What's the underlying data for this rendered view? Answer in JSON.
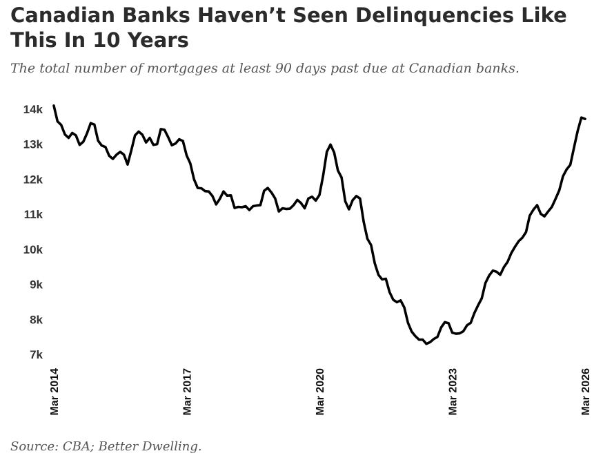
{
  "title": "Canadian Banks Haven’t Seen Delinquencies Like This In 10 Years",
  "subtitle": "The total number of mortgages at least 90 days past due at Canadian banks.",
  "source": "Source: CBA; Better Dwelling.",
  "chart_data": {
    "type": "line",
    "title": "Canadian Banks Haven’t Seen Delinquencies Like This In 10 Years",
    "subtitle": "The total number of mortgages at least 90 days past due at Canadian banks.",
    "xlabel": "",
    "ylabel": "",
    "ylim": [
      7000,
      14000
    ],
    "y_ticks": [
      {
        "value": 7000,
        "label": "7k"
      },
      {
        "value": 8000,
        "label": "8k"
      },
      {
        "value": 9000,
        "label": "9k"
      },
      {
        "value": 10000,
        "label": "10k"
      },
      {
        "value": 11000,
        "label": "11k"
      },
      {
        "value": 12000,
        "label": "12k"
      },
      {
        "value": 13000,
        "label": "13k"
      },
      {
        "value": 14000,
        "label": "14k"
      }
    ],
    "x_range": [
      "2014-03",
      "2026-03"
    ],
    "x_ticks": [
      {
        "date": "2014-03",
        "label": "Mar 2014"
      },
      {
        "date": "2017-03",
        "label": "Mar 2017"
      },
      {
        "date": "2020-03",
        "label": "Mar 2020"
      },
      {
        "date": "2023-03",
        "label": "Mar 2023"
      },
      {
        "date": "2026-03",
        "label": "Mar 2026"
      }
    ],
    "grid": false,
    "legend": "none",
    "line_color": "#000000",
    "series": [
      {
        "name": "",
        "points": [
          [
            "2014-03",
            14100
          ],
          [
            "2014-04",
            13650
          ],
          [
            "2014-05",
            13550
          ],
          [
            "2014-06",
            13280
          ],
          [
            "2014-07",
            13180
          ],
          [
            "2014-08",
            13320
          ],
          [
            "2014-09",
            13250
          ],
          [
            "2014-10",
            12980
          ],
          [
            "2014-11",
            13070
          ],
          [
            "2014-12",
            13310
          ],
          [
            "2015-01",
            13600
          ],
          [
            "2015-02",
            13560
          ],
          [
            "2015-03",
            13100
          ],
          [
            "2015-04",
            12960
          ],
          [
            "2015-05",
            12920
          ],
          [
            "2015-06",
            12670
          ],
          [
            "2015-07",
            12580
          ],
          [
            "2015-08",
            12700
          ],
          [
            "2015-09",
            12780
          ],
          [
            "2015-10",
            12700
          ],
          [
            "2015-11",
            12420
          ],
          [
            "2015-12",
            12820
          ],
          [
            "2016-01",
            13250
          ],
          [
            "2016-02",
            13360
          ],
          [
            "2016-03",
            13270
          ],
          [
            "2016-04",
            13050
          ],
          [
            "2016-05",
            13180
          ],
          [
            "2016-06",
            12980
          ],
          [
            "2016-07",
            13000
          ],
          [
            "2016-08",
            13430
          ],
          [
            "2016-09",
            13410
          ],
          [
            "2016-10",
            13200
          ],
          [
            "2016-11",
            12970
          ],
          [
            "2016-12",
            13020
          ],
          [
            "2017-01",
            13140
          ],
          [
            "2017-02",
            13090
          ],
          [
            "2017-03",
            12680
          ],
          [
            "2017-04",
            12450
          ],
          [
            "2017-05",
            12000
          ],
          [
            "2017-06",
            11750
          ],
          [
            "2017-07",
            11740
          ],
          [
            "2017-08",
            11660
          ],
          [
            "2017-09",
            11650
          ],
          [
            "2017-10",
            11520
          ],
          [
            "2017-11",
            11280
          ],
          [
            "2017-12",
            11440
          ],
          [
            "2018-01",
            11650
          ],
          [
            "2018-02",
            11530
          ],
          [
            "2018-03",
            11540
          ],
          [
            "2018-04",
            11180
          ],
          [
            "2018-05",
            11210
          ],
          [
            "2018-06",
            11200
          ],
          [
            "2018-07",
            11230
          ],
          [
            "2018-08",
            11120
          ],
          [
            "2018-09",
            11230
          ],
          [
            "2018-10",
            11250
          ],
          [
            "2018-11",
            11260
          ],
          [
            "2018-12",
            11670
          ],
          [
            "2019-01",
            11750
          ],
          [
            "2019-02",
            11620
          ],
          [
            "2019-03",
            11450
          ],
          [
            "2019-04",
            11080
          ],
          [
            "2019-05",
            11170
          ],
          [
            "2019-06",
            11150
          ],
          [
            "2019-07",
            11160
          ],
          [
            "2019-08",
            11260
          ],
          [
            "2019-09",
            11410
          ],
          [
            "2019-10",
            11320
          ],
          [
            "2019-11",
            11170
          ],
          [
            "2019-12",
            11450
          ],
          [
            "2020-01",
            11500
          ],
          [
            "2020-02",
            11390
          ],
          [
            "2020-03",
            11550
          ],
          [
            "2020-04",
            12100
          ],
          [
            "2020-05",
            12780
          ],
          [
            "2020-06",
            12990
          ],
          [
            "2020-07",
            12760
          ],
          [
            "2020-08",
            12250
          ],
          [
            "2020-09",
            12050
          ],
          [
            "2020-10",
            11370
          ],
          [
            "2020-11",
            11140
          ],
          [
            "2020-12",
            11400
          ],
          [
            "2021-01",
            11520
          ],
          [
            "2021-02",
            11450
          ],
          [
            "2021-03",
            10780
          ],
          [
            "2021-04",
            10300
          ],
          [
            "2021-05",
            10120
          ],
          [
            "2021-06",
            9600
          ],
          [
            "2021-07",
            9270
          ],
          [
            "2021-08",
            9140
          ],
          [
            "2021-09",
            9160
          ],
          [
            "2021-10",
            8780
          ],
          [
            "2021-11",
            8560
          ],
          [
            "2021-12",
            8490
          ],
          [
            "2022-01",
            8540
          ],
          [
            "2022-02",
            8340
          ],
          [
            "2022-03",
            7900
          ],
          [
            "2022-04",
            7650
          ],
          [
            "2022-05",
            7520
          ],
          [
            "2022-06",
            7420
          ],
          [
            "2022-07",
            7420
          ],
          [
            "2022-08",
            7300
          ],
          [
            "2022-09",
            7350
          ],
          [
            "2022-10",
            7440
          ],
          [
            "2022-11",
            7500
          ],
          [
            "2022-12",
            7770
          ],
          [
            "2023-01",
            7920
          ],
          [
            "2023-02",
            7890
          ],
          [
            "2023-03",
            7620
          ],
          [
            "2023-04",
            7590
          ],
          [
            "2023-05",
            7600
          ],
          [
            "2023-06",
            7660
          ],
          [
            "2023-07",
            7830
          ],
          [
            "2023-08",
            7900
          ],
          [
            "2023-09",
            8180
          ],
          [
            "2023-10",
            8400
          ],
          [
            "2023-11",
            8600
          ],
          [
            "2023-12",
            9040
          ],
          [
            "2024-01",
            9250
          ],
          [
            "2024-02",
            9390
          ],
          [
            "2024-03",
            9360
          ],
          [
            "2024-04",
            9270
          ],
          [
            "2024-05",
            9490
          ],
          [
            "2024-06",
            9640
          ],
          [
            "2024-07",
            9890
          ],
          [
            "2024-08",
            10070
          ],
          [
            "2024-09",
            10230
          ],
          [
            "2024-10",
            10330
          ],
          [
            "2024-11",
            10490
          ],
          [
            "2024-12",
            10960
          ],
          [
            "2025-01",
            11130
          ],
          [
            "2025-02",
            11260
          ],
          [
            "2025-03",
            11010
          ],
          [
            "2025-04",
            10940
          ],
          [
            "2025-05",
            11080
          ],
          [
            "2025-06",
            11210
          ],
          [
            "2025-07",
            11440
          ],
          [
            "2025-08",
            11680
          ],
          [
            "2025-09",
            12080
          ],
          [
            "2025-10",
            12280
          ],
          [
            "2025-11",
            12410
          ],
          [
            "2025-12",
            12900
          ],
          [
            "2026-01",
            13380
          ],
          [
            "2026-02",
            13760
          ],
          [
            "2026-03",
            13720
          ]
        ]
      }
    ]
  }
}
